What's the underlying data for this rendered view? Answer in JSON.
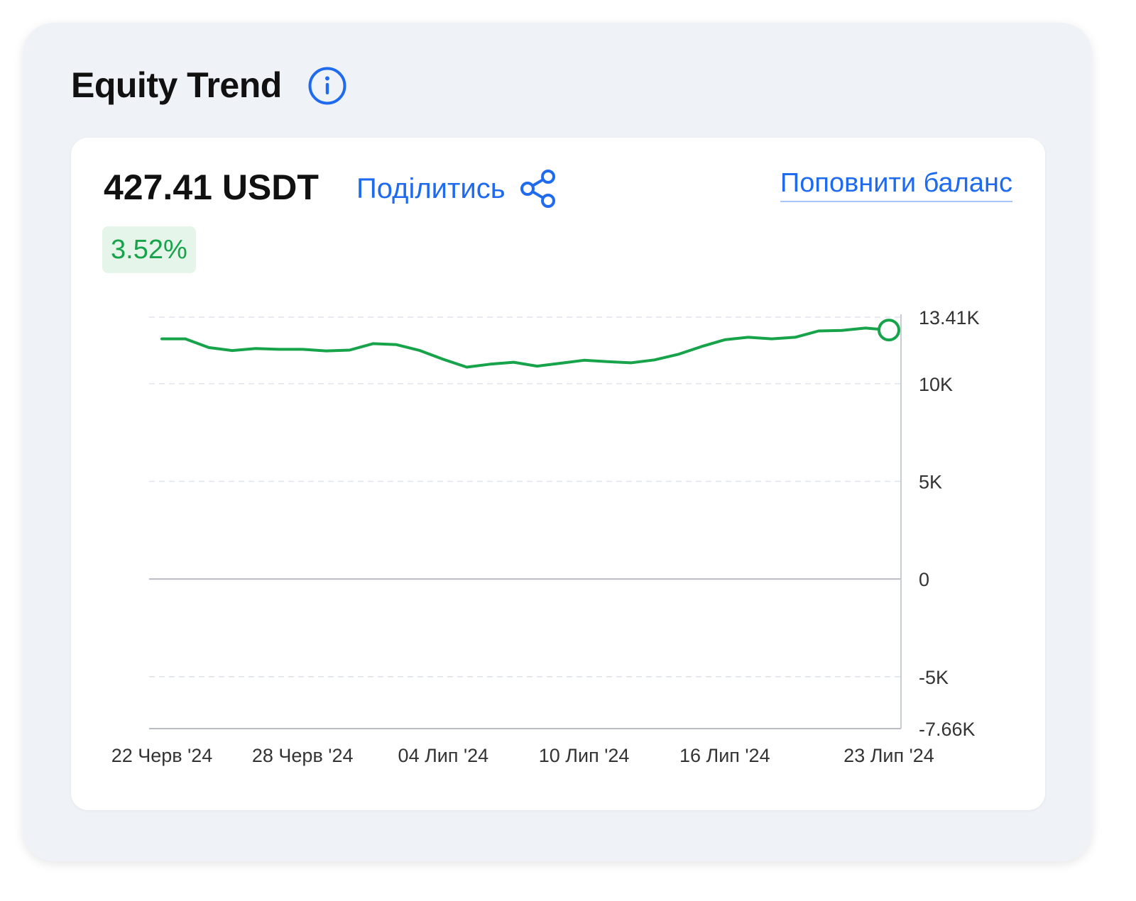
{
  "widget": {
    "title": "Equity Trend"
  },
  "icons": {
    "info": "info-icon",
    "share": "share-icon"
  },
  "card": {
    "balance": "427.41 USDT",
    "share_label": "Поділитись",
    "topup_label": "Поповнити баланс",
    "change": "3.52%"
  },
  "colors": {
    "accent": "#1f6bf0",
    "line": "#16a34a",
    "badge_bg": "#e6f5ea",
    "badge_text": "#16a34a",
    "panel_bg": "#eff3f8"
  },
  "chart_data": {
    "type": "line",
    "title": "",
    "xlabel": "",
    "ylabel": "",
    "ylim": [
      -7660,
      13410
    ],
    "y_axis_position": "right",
    "grid": true,
    "y_ticks": [
      {
        "value": 13410,
        "label": "13.41K"
      },
      {
        "value": 10000,
        "label": "10K"
      },
      {
        "value": 5000,
        "label": "5K"
      },
      {
        "value": 0,
        "label": "0"
      },
      {
        "value": -5000,
        "label": "-5K"
      },
      {
        "value": -7660,
        "label": "-7.66K"
      }
    ],
    "x_ticks": [
      {
        "date": "2024-06-22",
        "label": "22 Черв '24"
      },
      {
        "date": "2024-06-28",
        "label": "28 Черв '24"
      },
      {
        "date": "2024-07-04",
        "label": "04 Лип '24"
      },
      {
        "date": "2024-07-10",
        "label": "10 Лип '24"
      },
      {
        "date": "2024-07-16",
        "label": "16 Лип '24"
      },
      {
        "date": "2024-07-23",
        "label": "23 Лип '24"
      }
    ],
    "series": [
      {
        "x": [
          "2024-06-22",
          "2024-06-23",
          "2024-06-24",
          "2024-06-25",
          "2024-06-26",
          "2024-06-27",
          "2024-06-28",
          "2024-06-29",
          "2024-06-30",
          "2024-07-01",
          "2024-07-02",
          "2024-07-03",
          "2024-07-04",
          "2024-07-05",
          "2024-07-06",
          "2024-07-07",
          "2024-07-08",
          "2024-07-09",
          "2024-07-10",
          "2024-07-11",
          "2024-07-12",
          "2024-07-13",
          "2024-07-14",
          "2024-07-15",
          "2024-07-16",
          "2024-07-17",
          "2024-07-18",
          "2024-07-19",
          "2024-07-20",
          "2024-07-21",
          "2024-07-22",
          "2024-07-23"
        ],
        "values": [
          12300,
          12300,
          11850,
          11700,
          11800,
          11760,
          11760,
          11680,
          11720,
          12050,
          12000,
          11700,
          11250,
          10850,
          11000,
          11100,
          10900,
          11050,
          11200,
          11130,
          11070,
          11220,
          11500,
          11900,
          12250,
          12380,
          12300,
          12380,
          12700,
          12730,
          12850,
          12750
        ]
      }
    ]
  }
}
